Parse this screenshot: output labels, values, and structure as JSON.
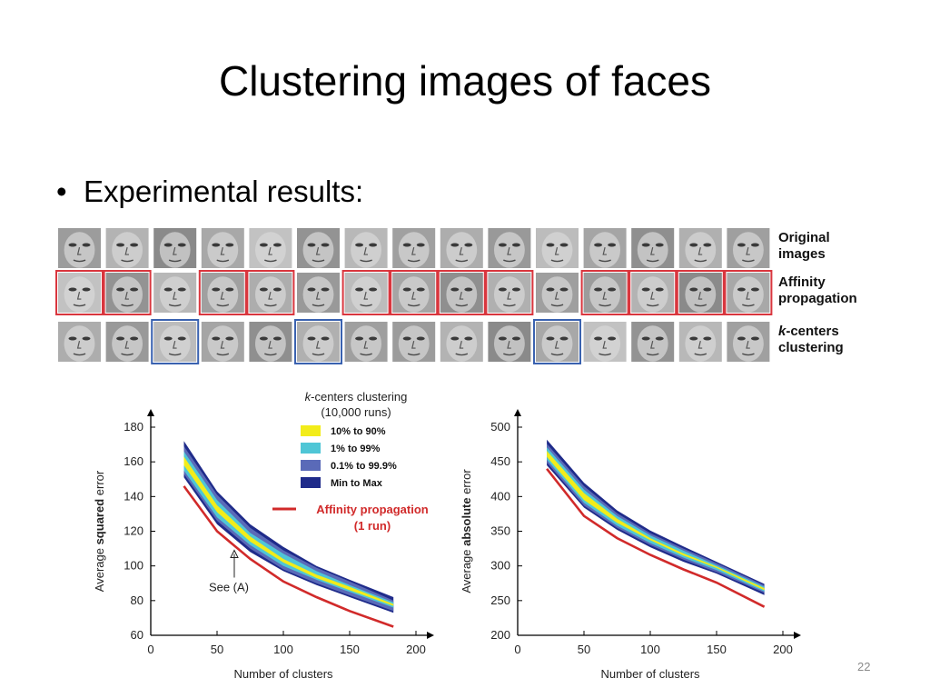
{
  "slide": {
    "title": "Clustering images of faces",
    "bullet": "Experimental results:",
    "page_number": "22"
  },
  "faces_panel": {
    "columns": 15,
    "rows": [
      {
        "label_lines": [
          "Original",
          "images"
        ],
        "italic_prefix": "",
        "boxed_columns": [],
        "box_color": ""
      },
      {
        "label_lines": [
          "Affinity",
          "propagation"
        ],
        "italic_prefix": "",
        "boxed_columns": [
          0,
          1,
          3,
          4,
          6,
          7,
          8,
          9,
          11,
          12,
          13,
          14
        ],
        "box_color": "#d9363e"
      },
      {
        "label_lines": [
          "-centers",
          "clustering"
        ],
        "italic_prefix": "k",
        "boxed_columns": [
          2,
          5,
          10
        ],
        "box_color": "#3a62b0"
      }
    ]
  },
  "colors": {
    "affinity": "#d12a2a",
    "band_minmax": "#1f2b8a",
    "band_01_999": "#5a6ab8",
    "band_1_99": "#4fc6d6",
    "band_10_90": "#f2ec1a",
    "kcenters_box": "#3a62b0",
    "affinity_box": "#d9363e"
  },
  "chart_data": [
    {
      "type": "area",
      "ylabel_parts": [
        "Average ",
        "squared",
        " error"
      ],
      "xlabel": "Number of clusters",
      "xlim": [
        0,
        200
      ],
      "ylim": [
        60,
        180
      ],
      "xticks": [
        0,
        50,
        100,
        150,
        200
      ],
      "yticks": [
        60,
        80,
        100,
        120,
        140,
        160,
        180
      ],
      "legend": {
        "title_italic": "k",
        "title_rest": "-centers clustering",
        "subtitle": "(10,000 runs)",
        "entries": [
          {
            "label": "10% to 90%",
            "color": "#f2ec1a"
          },
          {
            "label": "1% to 99%",
            "color": "#4fc6d6"
          },
          {
            "label": "0.1% to 99.9%",
            "color": "#5a6ab8"
          },
          {
            "label": "Min to Max",
            "color": "#1f2b8a"
          }
        ],
        "line_label": [
          "Affinity propagation",
          "(1 run)"
        ]
      },
      "annotation": "See (A)",
      "annotation_point": {
        "x": 63,
        "y": 109
      },
      "x": [
        25,
        50,
        75,
        100,
        125,
        150,
        183
      ],
      "bands": [
        {
          "name": "Min to Max",
          "lower": [
            151,
            124,
            108,
            97,
            89,
            82,
            73
          ],
          "upper": [
            172,
            143,
            124,
            111,
            100,
            92,
            82
          ]
        },
        {
          "name": "0.1% to 99.9%",
          "lower": [
            153,
            126,
            110,
            98,
            90,
            83,
            74
          ],
          "upper": [
            169,
            141,
            122,
            109,
            99,
            91,
            80
          ]
        },
        {
          "name": "1% to 99%",
          "lower": [
            155,
            128,
            112,
            100,
            92,
            85,
            76
          ],
          "upper": [
            166,
            138,
            119,
            107,
            97,
            89,
            79
          ]
        },
        {
          "name": "10% to 90%",
          "lower": [
            158,
            131,
            114,
            102,
            93,
            86,
            77
          ],
          "upper": [
            163,
            135,
            117,
            104,
            95,
            88,
            78
          ]
        }
      ],
      "series": [
        {
          "name": "Affinity propagation",
          "values": [
            146,
            120,
            104,
            91,
            82,
            74,
            65
          ]
        }
      ]
    },
    {
      "type": "area",
      "ylabel_parts": [
        "Average ",
        "absolute",
        " error"
      ],
      "xlabel": "Number of clusters",
      "xlim": [
        0,
        200
      ],
      "ylim": [
        200,
        500
      ],
      "xticks": [
        0,
        50,
        100,
        150,
        200
      ],
      "yticks": [
        200,
        250,
        300,
        350,
        400,
        450,
        500
      ],
      "x": [
        22,
        50,
        75,
        100,
        125,
        150,
        186
      ],
      "bands": [
        {
          "name": "Min to Max",
          "lower": [
            445,
            384,
            352,
            327,
            306,
            289,
            258
          ],
          "upper": [
            482,
            420,
            380,
            351,
            328,
            306,
            274
          ]
        },
        {
          "name": "0.1% to 99.9%",
          "lower": [
            449,
            387,
            355,
            330,
            309,
            291,
            261
          ],
          "upper": [
            476,
            415,
            376,
            347,
            325,
            304,
            272
          ]
        },
        {
          "name": "1% to 99%",
          "lower": [
            453,
            391,
            358,
            333,
            312,
            294,
            263
          ],
          "upper": [
            471,
            410,
            372,
            344,
            322,
            301,
            270
          ]
        },
        {
          "name": "10% to 90%",
          "lower": [
            457,
            395,
            362,
            337,
            315,
            297,
            265
          ],
          "upper": [
            466,
            405,
            368,
            340,
            318,
            299,
            268
          ]
        }
      ],
      "series": [
        {
          "name": "Affinity propagation",
          "values": [
            440,
            372,
            340,
            316,
            295,
            276,
            241
          ]
        }
      ]
    }
  ]
}
